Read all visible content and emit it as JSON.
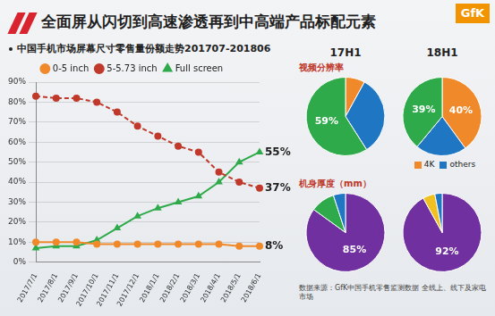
{
  "header": {
    "title": "全面屏从闪切到高速渗透再到中高端产品标配元素",
    "logo": "GfK"
  },
  "chart_data": [
    {
      "type": "line",
      "subtitle": "中国手机市场屏幕尺寸零售量份额走势201707-201806",
      "categories": [
        "2017/7/1",
        "2017/8/1",
        "2017/9/1",
        "2017/10/1",
        "2017/11/1",
        "2017/12/1",
        "2018/1/1",
        "2018/2/1",
        "2018/3/1",
        "2018/4/1",
        "2018/5/1",
        "2018/6/1"
      ],
      "series": [
        {
          "name": "0-5 inch",
          "color": "#f0892a",
          "marker": "circle",
          "line_style": "solid",
          "values": [
            10,
            10,
            10,
            9,
            9,
            9,
            9,
            9,
            9,
            9,
            8,
            8
          ],
          "value_labels": [
            null,
            null,
            null,
            null,
            null,
            null,
            null,
            null,
            null,
            null,
            null,
            "8%"
          ]
        },
        {
          "name": "5-5.73 inch",
          "color": "#c0392b",
          "marker": "circle",
          "line_style": "dashed",
          "values": [
            83,
            82,
            82,
            80,
            75,
            68,
            63,
            58,
            55,
            45,
            40,
            37
          ],
          "value_labels": [
            null,
            null,
            null,
            null,
            null,
            null,
            null,
            null,
            null,
            null,
            null,
            "37%"
          ]
        },
        {
          "name": "Full screen",
          "color": "#2eaa4a",
          "marker": "triangle",
          "line_style": "solid",
          "values": [
            7,
            8,
            8,
            11,
            17,
            23,
            27,
            30,
            33,
            40,
            50,
            55
          ],
          "value_labels": [
            null,
            null,
            null,
            null,
            null,
            null,
            null,
            null,
            null,
            null,
            null,
            "55%"
          ]
        }
      ],
      "ylim": [
        0,
        90
      ],
      "yticks": [
        {
          "value": 0,
          "label": "0%"
        },
        {
          "value": 10,
          "label": "10%"
        },
        {
          "value": 20,
          "label": "20%"
        },
        {
          "value": 30,
          "label": "30%"
        },
        {
          "value": 40,
          "label": "40%"
        },
        {
          "value": 50,
          "label": "50%"
        },
        {
          "value": 60,
          "label": "60%"
        },
        {
          "value": 70,
          "label": "70%"
        },
        {
          "value": 80,
          "label": "80%"
        },
        {
          "value": 90,
          "label": "90%"
        }
      ],
      "grid": true,
      "legend": "top"
    },
    {
      "type": "pie",
      "title": "17H1",
      "subtitle": "视频分辨率",
      "categories": [
        "4K",
        "others",
        null
      ],
      "colors": [
        "#f0892a",
        "#1f77c4",
        "#2eaa4a"
      ],
      "values": [
        8,
        33,
        59
      ],
      "value_labels": [
        null,
        null,
        "59%"
      ]
    },
    {
      "type": "pie",
      "title": "18H1",
      "categories": [
        "4K",
        "others",
        null
      ],
      "colors": [
        "#f0892a",
        "#1f77c4",
        "#2eaa4a"
      ],
      "values": [
        40,
        21,
        39
      ],
      "value_labels": [
        "40%",
        null,
        "39%"
      ],
      "legend": "bottom"
    },
    {
      "type": "pie",
      "subtitle": "机身厚度（mm）",
      "categories": [
        null,
        null,
        null
      ],
      "colors": [
        "#7030a0",
        "#2eaa4a",
        "#1f77c4"
      ],
      "values": [
        85,
        10,
        5
      ],
      "value_labels": [
        "85%",
        null,
        null
      ]
    },
    {
      "type": "pie",
      "categories": [
        null,
        null,
        null
      ],
      "colors": [
        "#7030a0",
        "#f0c020",
        "#1f77c4"
      ],
      "values": [
        92,
        5,
        3
      ],
      "value_labels": [
        "92%",
        null,
        null
      ]
    }
  ],
  "source": "数据来源：GfK中国手机零售监测数据 全线上、线下及家电市场"
}
